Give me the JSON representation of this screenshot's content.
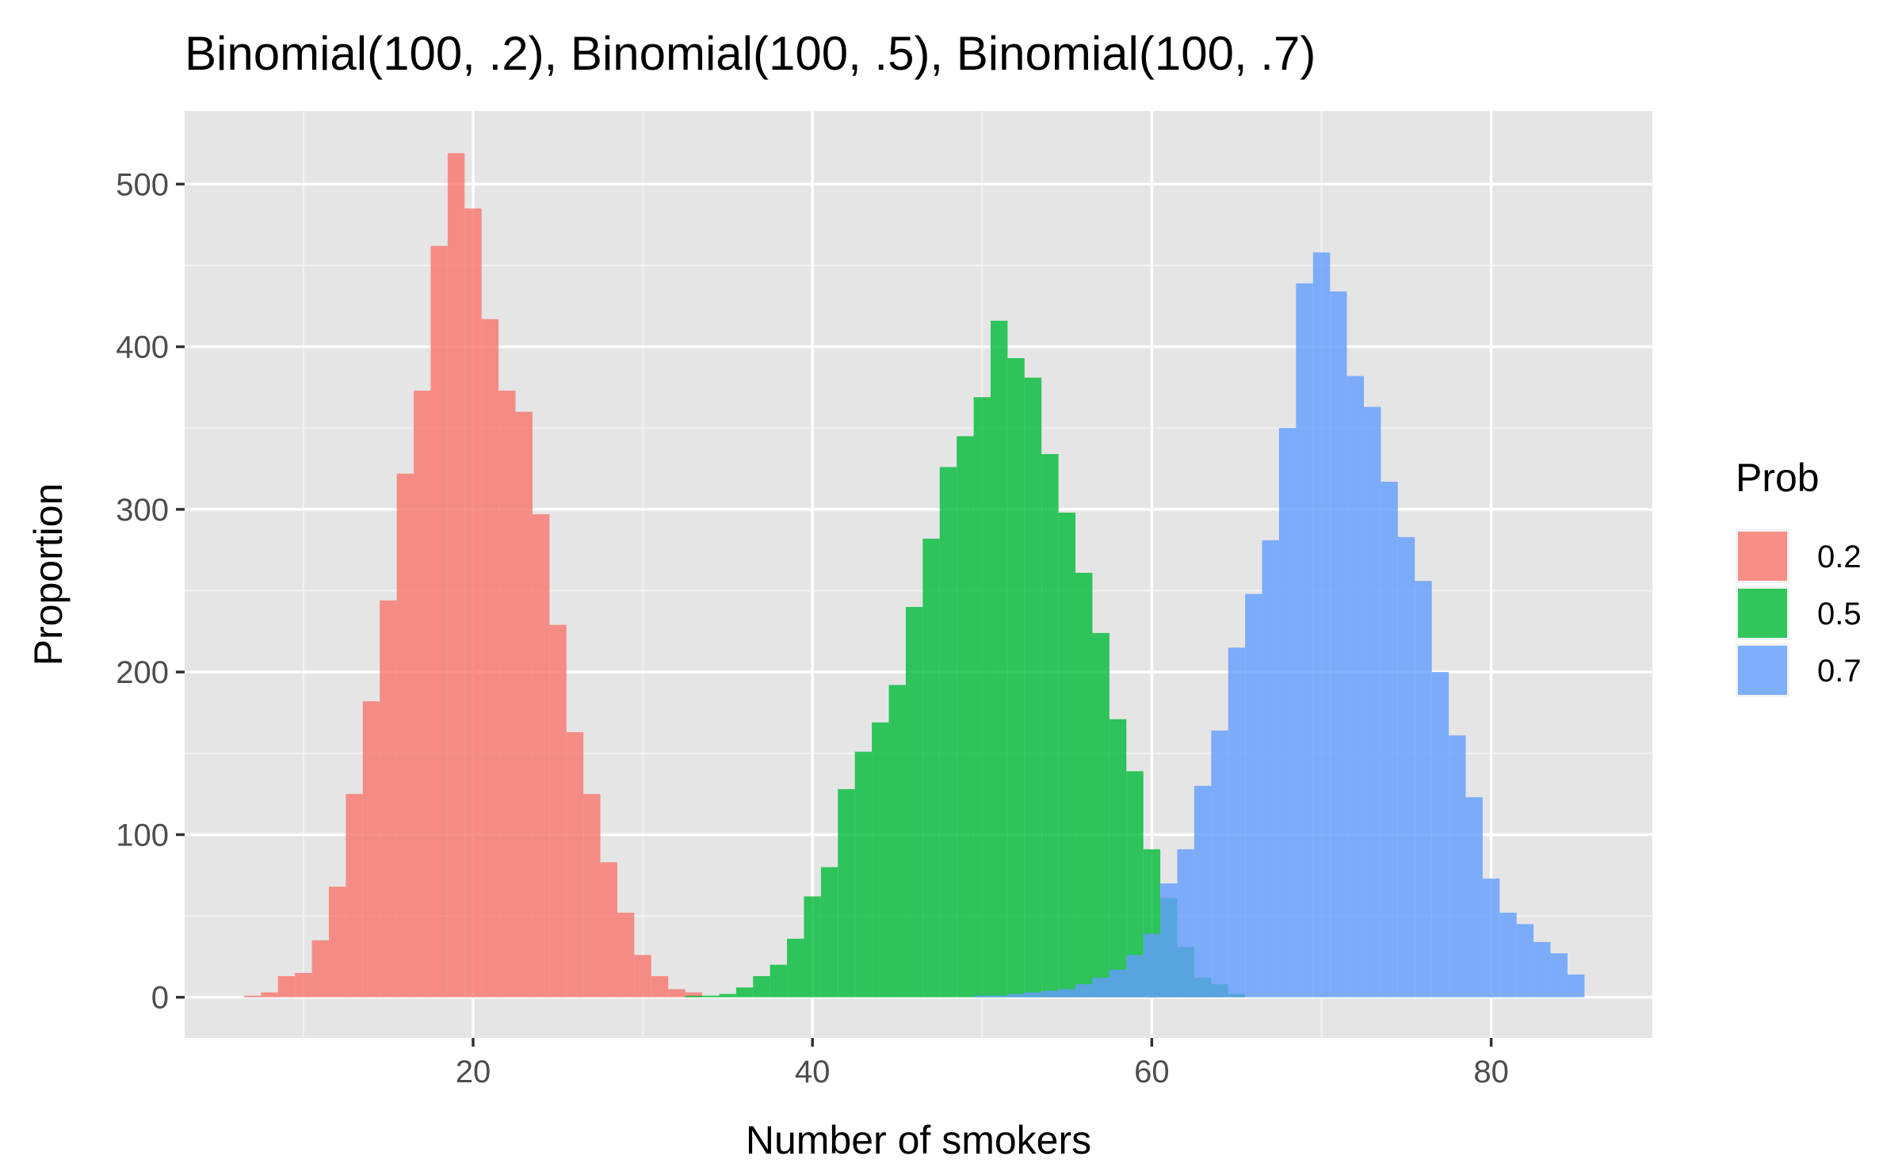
{
  "chart_data": {
    "type": "bar",
    "title": "Binomial(100, .2), Binomial(100, .5), Binomial(100, .7)",
    "xlabel": "Number of smokers",
    "ylabel": "Proportion",
    "xlim": [
      3.0,
      89.5
    ],
    "ylim": [
      -25,
      545
    ],
    "x_ticks": [
      20,
      40,
      60,
      80
    ],
    "y_ticks": [
      0,
      100,
      200,
      300,
      400,
      500
    ],
    "grid": true,
    "legend_title": "Prob",
    "legend_position": "right",
    "bin_width": 1,
    "series": [
      {
        "name": "0.2",
        "color": "#F8766D",
        "x": [
          7,
          8,
          9,
          10,
          11,
          12,
          13,
          14,
          15,
          16,
          17,
          18,
          19,
          20,
          21,
          22,
          23,
          24,
          25,
          26,
          27,
          28,
          29,
          30,
          31,
          32,
          33
        ],
        "values": [
          1,
          3,
          13,
          15,
          35,
          68,
          125,
          182,
          244,
          322,
          373,
          462,
          519,
          485,
          417,
          373,
          360,
          297,
          229,
          163,
          125,
          83,
          52,
          26,
          13,
          5,
          3
        ]
      },
      {
        "name": "0.5",
        "color": "#00BA38",
        "x": [
          33,
          34,
          35,
          36,
          37,
          38,
          39,
          40,
          41,
          42,
          43,
          44,
          45,
          46,
          47,
          48,
          49,
          50,
          51,
          52,
          53,
          54,
          55,
          56,
          57,
          58,
          59,
          60,
          61,
          62,
          63,
          64,
          65
        ],
        "values": [
          1,
          1,
          2,
          6,
          13,
          20,
          36,
          62,
          80,
          128,
          151,
          169,
          192,
          240,
          282,
          326,
          345,
          369,
          416,
          393,
          381,
          334,
          298,
          261,
          224,
          171,
          139,
          91,
          61,
          31,
          12,
          8,
          2
        ]
      },
      {
        "name": "0.7",
        "color": "#619CFF",
        "x": [
          50,
          51,
          52,
          53,
          54,
          55,
          56,
          57,
          58,
          59,
          60,
          61,
          62,
          63,
          64,
          65,
          66,
          67,
          68,
          69,
          70,
          71,
          72,
          73,
          74,
          75,
          76,
          77,
          78,
          79,
          80,
          81,
          82,
          83,
          84,
          85
        ],
        "values": [
          1,
          1,
          2,
          3,
          4,
          5,
          8,
          12,
          17,
          26,
          39,
          70,
          91,
          130,
          164,
          215,
          248,
          281,
          350,
          439,
          458,
          434,
          382,
          363,
          317,
          283,
          256,
          200,
          161,
          123,
          73,
          52,
          45,
          34,
          27,
          14
        ]
      }
    ]
  }
}
